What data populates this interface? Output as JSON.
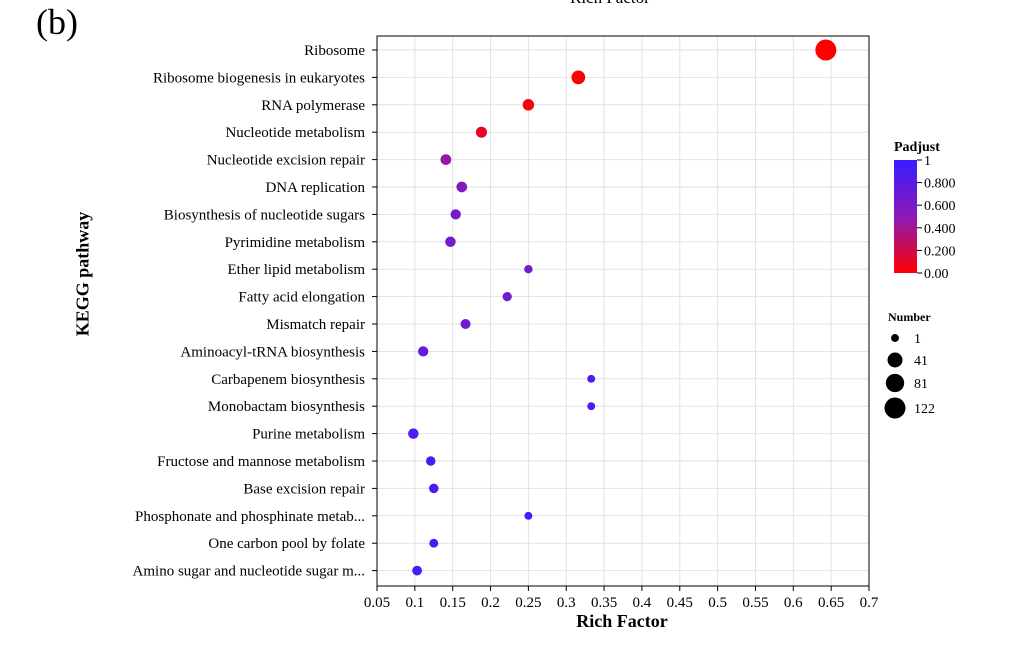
{
  "panel_label": "(b)",
  "top_cut_label": "Rich Factor",
  "chart_data": {
    "type": "scatter",
    "title": "",
    "xlabel": "Rich Factor",
    "ylabel": "KEGG pathway",
    "xlim": [
      0.05,
      0.7
    ],
    "xticks": [
      "0.05",
      "0.1",
      "0.15",
      "0.2",
      "0.25",
      "0.3",
      "0.35",
      "0.4",
      "0.45",
      "0.5",
      "0.55",
      "0.6",
      "0.65",
      "0.7"
    ],
    "grid": true,
    "points": [
      {
        "pathway": "Ribosome",
        "rich_factor": 0.643,
        "number": 122,
        "padjust": 0.0
      },
      {
        "pathway": "Ribosome biogenesis in eukaryotes",
        "rich_factor": 0.316,
        "number": 30,
        "padjust": 0.01
      },
      {
        "pathway": "RNA polymerase",
        "rich_factor": 0.25,
        "number": 14,
        "padjust": 0.03
      },
      {
        "pathway": "Nucleotide metabolism",
        "rich_factor": 0.188,
        "number": 12,
        "padjust": 0.1
      },
      {
        "pathway": "Nucleotide excision repair",
        "rich_factor": 0.141,
        "number": 10,
        "padjust": 0.45
      },
      {
        "pathway": "DNA replication",
        "rich_factor": 0.162,
        "number": 10,
        "padjust": 0.55
      },
      {
        "pathway": "Biosynthesis of nucleotide sugars",
        "rich_factor": 0.154,
        "number": 8,
        "padjust": 0.62
      },
      {
        "pathway": "Pyrimidine metabolism",
        "rich_factor": 0.147,
        "number": 9,
        "padjust": 0.64
      },
      {
        "pathway": "Ether lipid metabolism",
        "rich_factor": 0.25,
        "number": 2,
        "padjust": 0.65
      },
      {
        "pathway": "Fatty acid elongation",
        "rich_factor": 0.222,
        "number": 4,
        "padjust": 0.66
      },
      {
        "pathway": "Mismatch repair",
        "rich_factor": 0.167,
        "number": 7,
        "padjust": 0.67
      },
      {
        "pathway": "Aminoacyl-tRNA biosynthesis",
        "rich_factor": 0.111,
        "number": 8,
        "padjust": 0.75
      },
      {
        "pathway": "Carbapenem biosynthesis",
        "rich_factor": 0.333,
        "number": 1,
        "padjust": 0.85
      },
      {
        "pathway": "Monobactam biosynthesis",
        "rich_factor": 0.333,
        "number": 1,
        "padjust": 0.85
      },
      {
        "pathway": "Purine metabolism",
        "rich_factor": 0.098,
        "number": 9,
        "padjust": 0.88
      },
      {
        "pathway": "Fructose and mannose metabolism",
        "rich_factor": 0.121,
        "number": 5,
        "padjust": 0.9
      },
      {
        "pathway": "Base excision repair",
        "rich_factor": 0.125,
        "number": 5,
        "padjust": 0.9
      },
      {
        "pathway": "Phosphonate and phosphinate metab...",
        "rich_factor": 0.25,
        "number": 1,
        "padjust": 0.92
      },
      {
        "pathway": "One carbon pool by folate",
        "rich_factor": 0.125,
        "number": 3,
        "padjust": 0.92
      },
      {
        "pathway": "Amino sugar and nucleotide sugar m...",
        "rich_factor": 0.103,
        "number": 6,
        "padjust": 0.94
      }
    ],
    "color_legend": {
      "title": "Padjust",
      "min_color": "#ff0000",
      "mid_color": "#8b1ab8",
      "max_color": "#3a1cff",
      "labels": [
        "1",
        "0.800",
        "0.600",
        "0.400",
        "0.200",
        "0.00"
      ]
    },
    "size_legend": {
      "title": "Number",
      "entries": [
        {
          "label": "1",
          "value": 1
        },
        {
          "label": "41",
          "value": 41
        },
        {
          "label": "81",
          "value": 81
        },
        {
          "label": "122",
          "value": 122
        }
      ]
    }
  }
}
